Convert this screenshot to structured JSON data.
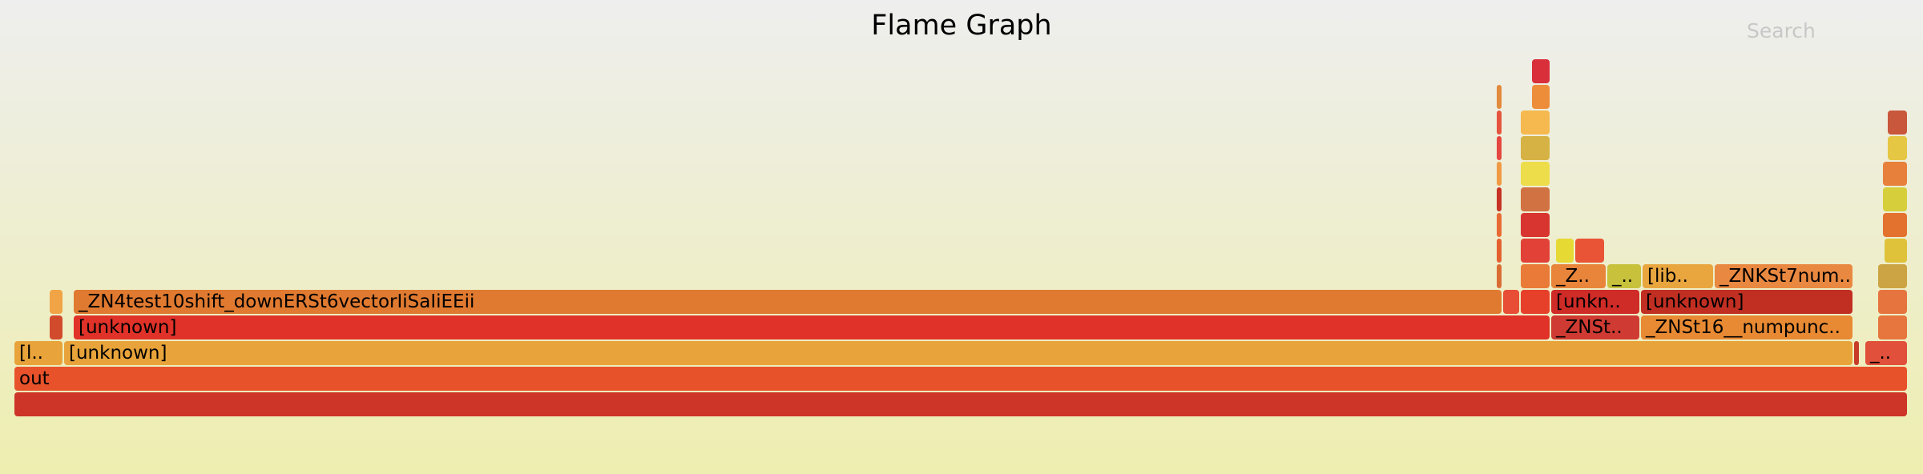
{
  "title": "Flame Graph",
  "search_label": "Search",
  "frames": [
    {
      "label": "",
      "color": "#cc3527"
    },
    {
      "label": "out",
      "color": "#e8522b"
    },
    {
      "label": "[l..",
      "color": "#e8a33a"
    },
    {
      "label": "[unknown]",
      "color": "#e8a33a"
    },
    {
      "label": "",
      "color": "#c73b28"
    },
    {
      "label": "_..",
      "color": "#e0503a"
    },
    {
      "label": "",
      "color": "#d24a2c"
    },
    {
      "label": "[unknown]",
      "color": "#e03228"
    },
    {
      "label": "_ZNSt..",
      "color": "#cf3b32"
    },
    {
      "label": "_ZNSt16__numpunc..",
      "color": "#e88a33"
    },
    {
      "label": "",
      "color": "#e6753e"
    },
    {
      "label": "",
      "color": "#f0a445"
    },
    {
      "label": "_ZN4test10shift_downERSt6vectorIiSaIiEEii",
      "color": "#e07a30"
    },
    {
      "label": "",
      "color": "#e74e35"
    },
    {
      "label": "",
      "color": "#e6402b"
    },
    {
      "label": "[unkn..",
      "color": "#cf2b27"
    },
    {
      "label": "[unknown]",
      "color": "#c12f22"
    },
    {
      "label": "",
      "color": "#e6743f"
    },
    {
      "label": "",
      "color": "#d96d34"
    },
    {
      "label": "",
      "color": "#ea7a37"
    },
    {
      "label": "_Z..",
      "color": "#e8853a"
    },
    {
      "label": "_..",
      "color": "#c7c13c"
    },
    {
      "label": "[lib..",
      "color": "#e9a63f"
    },
    {
      "label": "_ZNKSt7num..",
      "color": "#e98840"
    },
    {
      "label": "",
      "color": "#cca443"
    },
    {
      "label": "",
      "color": "#e4602f"
    },
    {
      "label": "",
      "color": "#e24137"
    },
    {
      "label": "",
      "color": "#e6d934"
    },
    {
      "label": "",
      "color": "#ea5436"
    },
    {
      "label": "",
      "color": "#dfc23a"
    },
    {
      "label": "",
      "color": "#e86a33"
    },
    {
      "label": "",
      "color": "#d83531"
    },
    {
      "label": "",
      "color": "#e3722f"
    },
    {
      "label": "",
      "color": "#c63224"
    },
    {
      "label": "",
      "color": "#d17242"
    },
    {
      "label": "",
      "color": "#d6cf3b"
    },
    {
      "label": "",
      "color": "#f09a44"
    },
    {
      "label": "",
      "color": "#eddd4a"
    },
    {
      "label": "",
      "color": "#e7803a"
    },
    {
      "label": "",
      "color": "#e54640"
    },
    {
      "label": "",
      "color": "#d6b244"
    },
    {
      "label": "",
      "color": "#e6c744"
    },
    {
      "label": "",
      "color": "#e5543e"
    },
    {
      "label": "",
      "color": "#f6b94f"
    },
    {
      "label": "",
      "color": "#c9573b"
    },
    {
      "label": "",
      "color": "#e28a3b"
    },
    {
      "label": "",
      "color": "#ed8d3a"
    },
    {
      "label": "",
      "color": "#d82f3b"
    }
  ]
}
